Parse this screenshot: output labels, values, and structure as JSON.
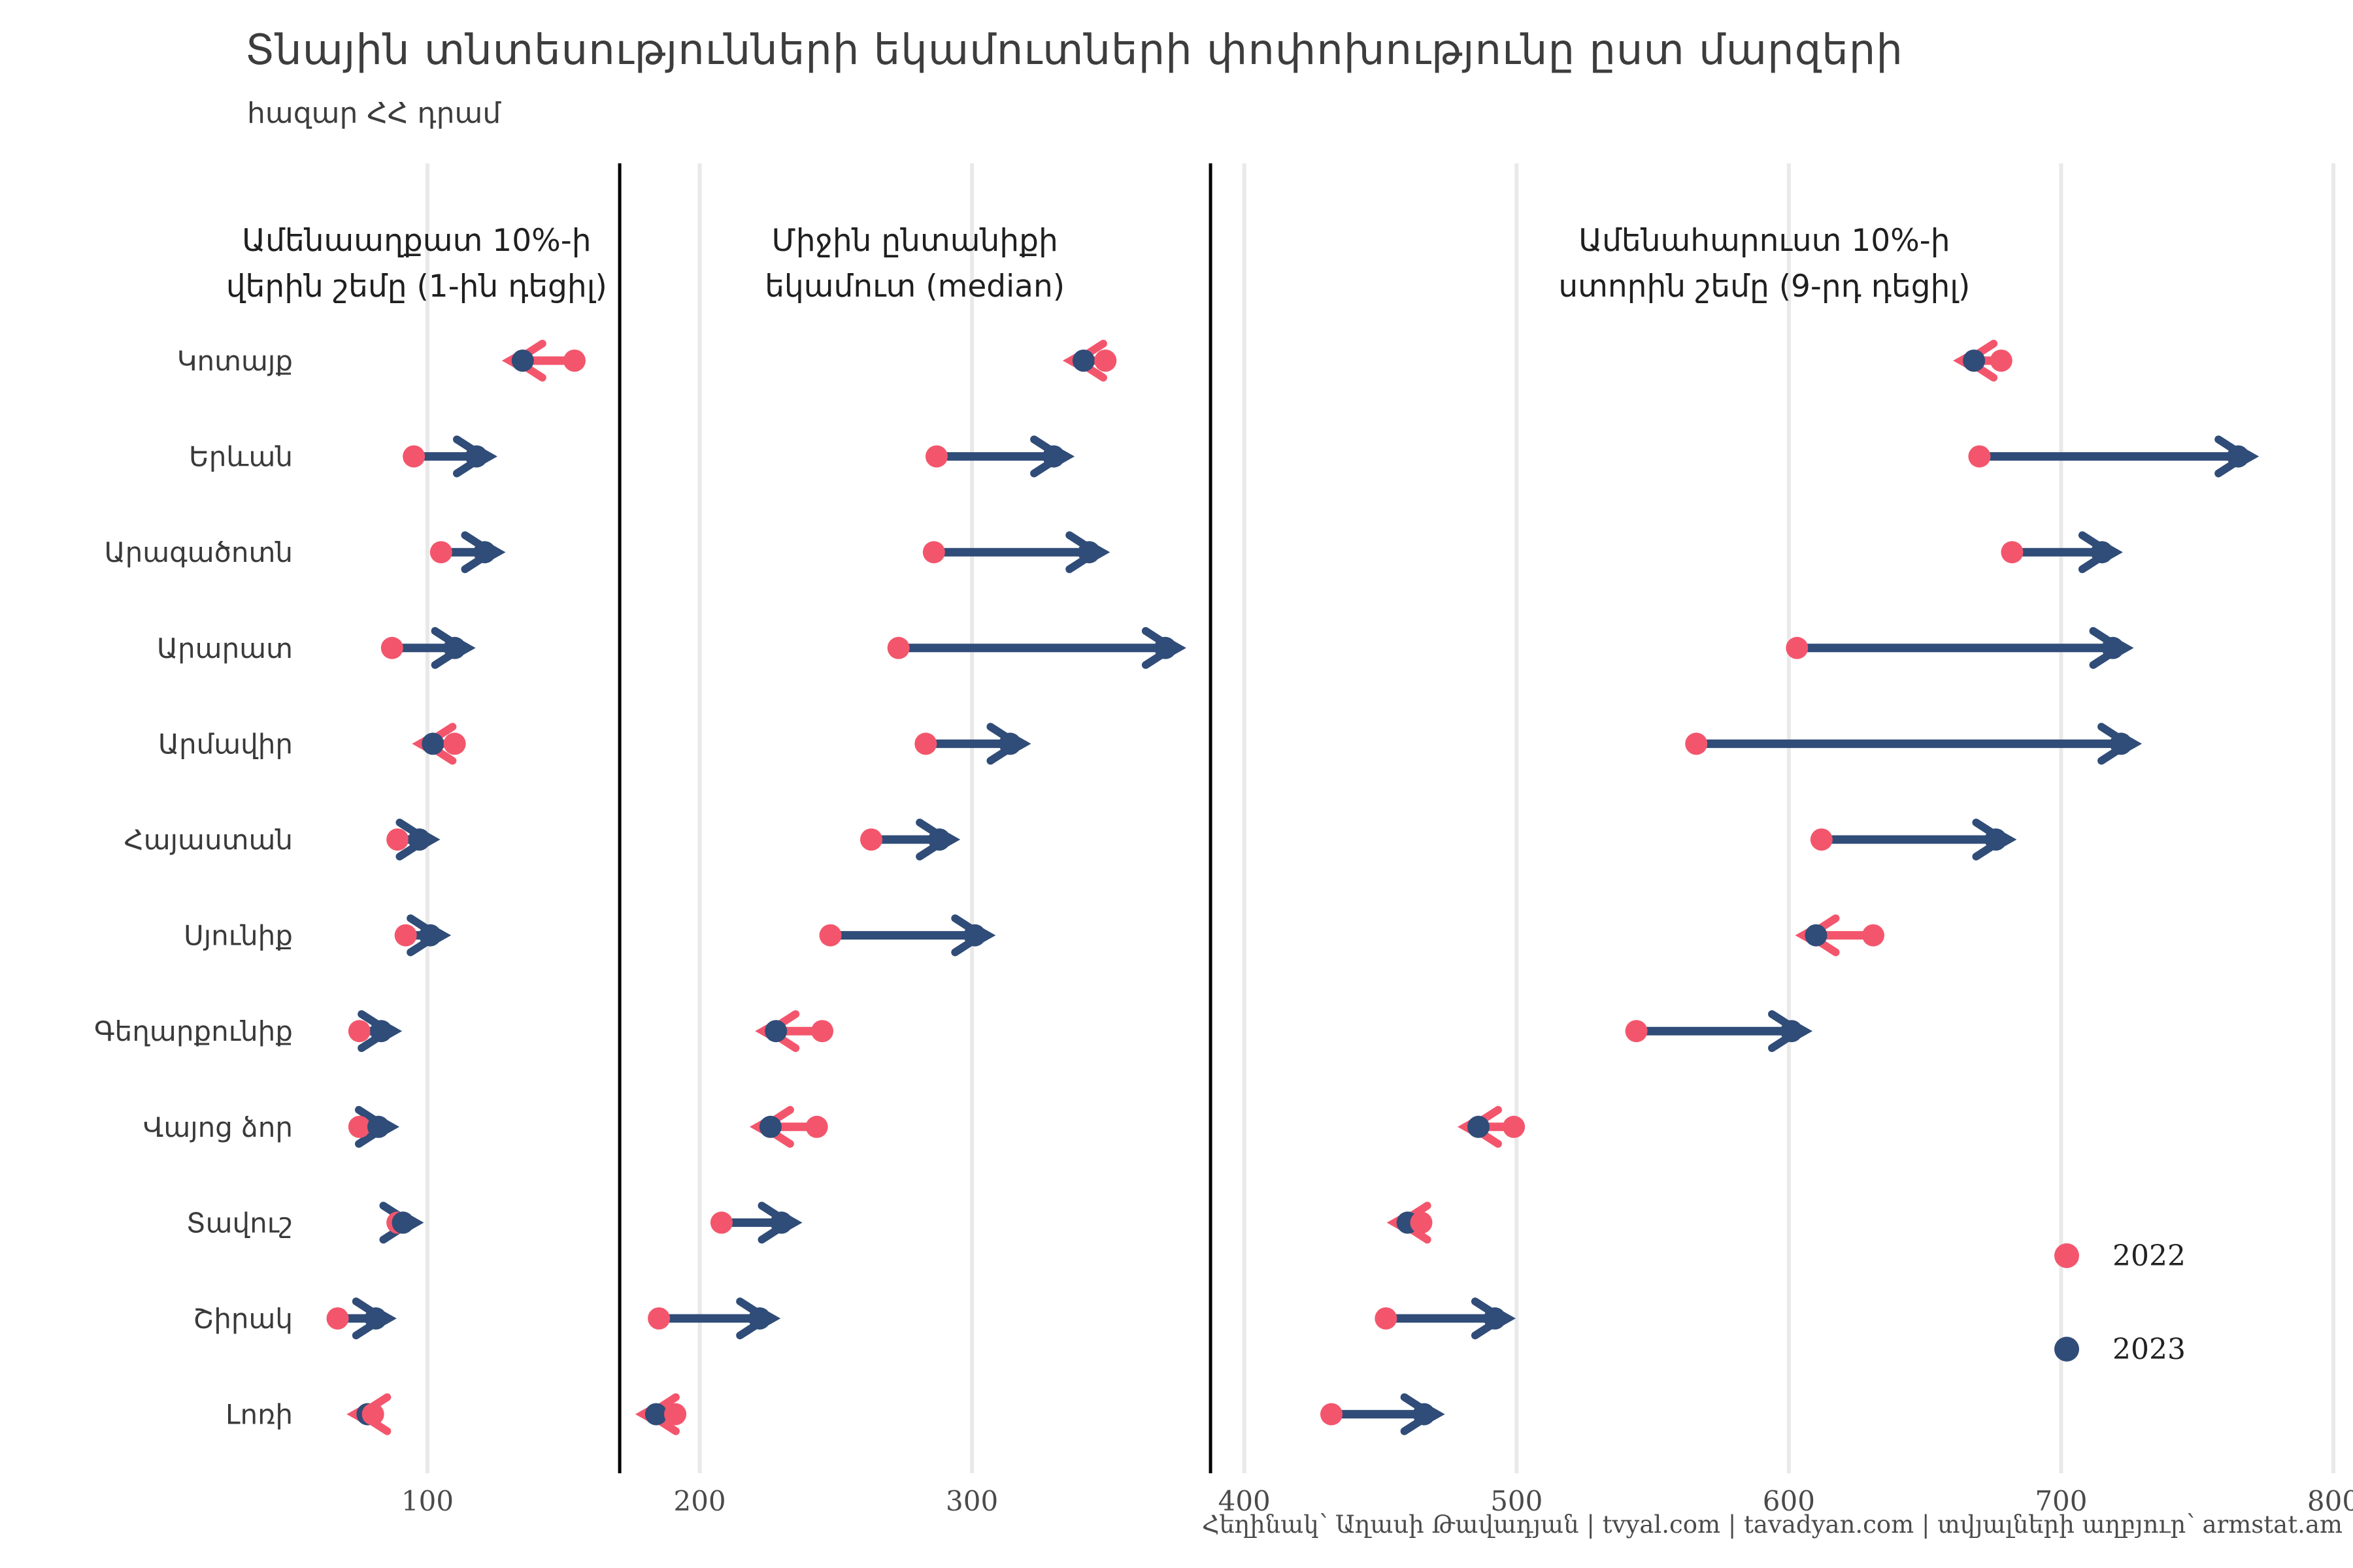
{
  "title": "Տնային տնտեսությունների եկամուտների փոփոխությունը ըստ մարզերի",
  "subtitle": "հազար ՀՀ դրամ",
  "footer": {
    "text": "Հեղինակ՝ Աղասի Թավադյան   |   tvyal.com   |   tavadyan.com   |   տվյալների աղբյուր՝ armstat.am"
  },
  "legend": {
    "items": [
      {
        "label": "2022",
        "color": "#f3566c"
      },
      {
        "label": "2023",
        "color": "#304c78"
      }
    ]
  },
  "colors": {
    "year2022": "#f3566c",
    "year2023": "#304c78",
    "grid": "#e9e9e9",
    "separator": "#000000",
    "tick_text": "#4a4a4a",
    "label_text": "#3a3a3a",
    "header_text": "#1f1f1f"
  },
  "chart_data": {
    "type": "dumbbell-arrow",
    "unit": "հազար ՀՀ դրամ",
    "years": [
      "2022",
      "2023"
    ],
    "x_ticks": [
      100,
      200,
      300,
      400,
      500,
      600,
      700,
      800
    ],
    "xlim": [
      55,
      805
    ],
    "grid": true,
    "legend_position": "bottom-right",
    "panel_separators_x": [
      170.6,
      387.6
    ],
    "panels": [
      {
        "id": "decile1",
        "title_lines": [
          "Ամենաաղքատ 10%-ի",
          "վերին շեմը (1-ին դեցիլ)"
        ],
        "center_x_value": 96
      },
      {
        "id": "median",
        "title_lines": [
          "Միջին ընտանիքի",
          "եկամուտ (median)"
        ],
        "center_x_value": 279
      },
      {
        "id": "decile9",
        "title_lines": [
          "Ամենահարուստ 10%-ի",
          "ստորին շեմը (9-րդ դեցիլ)"
        ],
        "center_x_value": 591
      }
    ],
    "rows": [
      {
        "region": "Կոտայք",
        "decile1": {
          "y2022": 154,
          "y2023": 135
        },
        "median": {
          "y2022": 349,
          "y2023": 341
        },
        "decile9": {
          "y2022": 678,
          "y2023": 668
        }
      },
      {
        "region": "Երևան",
        "decile1": {
          "y2022": 95,
          "y2023": 118
        },
        "median": {
          "y2022": 287,
          "y2023": 330
        },
        "decile9": {
          "y2022": 670,
          "y2023": 765
        }
      },
      {
        "region": "Արագածոտն",
        "decile1": {
          "y2022": 105,
          "y2023": 121
        },
        "median": {
          "y2022": 286,
          "y2023": 343
        },
        "decile9": {
          "y2022": 682,
          "y2023": 715
        }
      },
      {
        "region": "Արարատ",
        "decile1": {
          "y2022": 87,
          "y2023": 110
        },
        "median": {
          "y2022": 273,
          "y2023": 371
        },
        "decile9": {
          "y2022": 603,
          "y2023": 719
        }
      },
      {
        "region": "Արմավիր",
        "decile1": {
          "y2022": 110,
          "y2023": 102
        },
        "median": {
          "y2022": 283,
          "y2023": 314
        },
        "decile9": {
          "y2022": 566,
          "y2023": 722
        }
      },
      {
        "region": "Հայաստան",
        "decile1": {
          "y2022": 89,
          "y2023": 97
        },
        "median": {
          "y2022": 263,
          "y2023": 288
        },
        "decile9": {
          "y2022": 612,
          "y2023": 676
        }
      },
      {
        "region": "Սյունիք",
        "decile1": {
          "y2022": 92,
          "y2023": 101
        },
        "median": {
          "y2022": 248,
          "y2023": 301
        },
        "decile9": {
          "y2022": 631,
          "y2023": 610
        }
      },
      {
        "region": "Գեղարքունիք",
        "decile1": {
          "y2022": 75,
          "y2023": 83
        },
        "median": {
          "y2022": 245,
          "y2023": 228
        },
        "decile9": {
          "y2022": 544,
          "y2023": 601
        }
      },
      {
        "region": "Վայոց ձոր",
        "decile1": {
          "y2022": 75,
          "y2023": 82
        },
        "median": {
          "y2022": 243,
          "y2023": 226
        },
        "decile9": {
          "y2022": 499,
          "y2023": 486
        }
      },
      {
        "region": "Տավուշ",
        "decile1": {
          "y2022": 89,
          "y2023": 91
        },
        "median": {
          "y2022": 208,
          "y2023": 230
        },
        "decile9": {
          "y2022": 465,
          "y2023": 460
        }
      },
      {
        "region": "Շիրակ",
        "decile1": {
          "y2022": 67,
          "y2023": 81
        },
        "median": {
          "y2022": 185,
          "y2023": 222
        },
        "decile9": {
          "y2022": 452,
          "y2023": 492
        }
      },
      {
        "region": "Լոռի",
        "decile1": {
          "y2022": 80,
          "y2023": 78
        },
        "median": {
          "y2022": 191,
          "y2023": 184
        },
        "decile9": {
          "y2022": 432,
          "y2023": 466
        }
      }
    ]
  }
}
